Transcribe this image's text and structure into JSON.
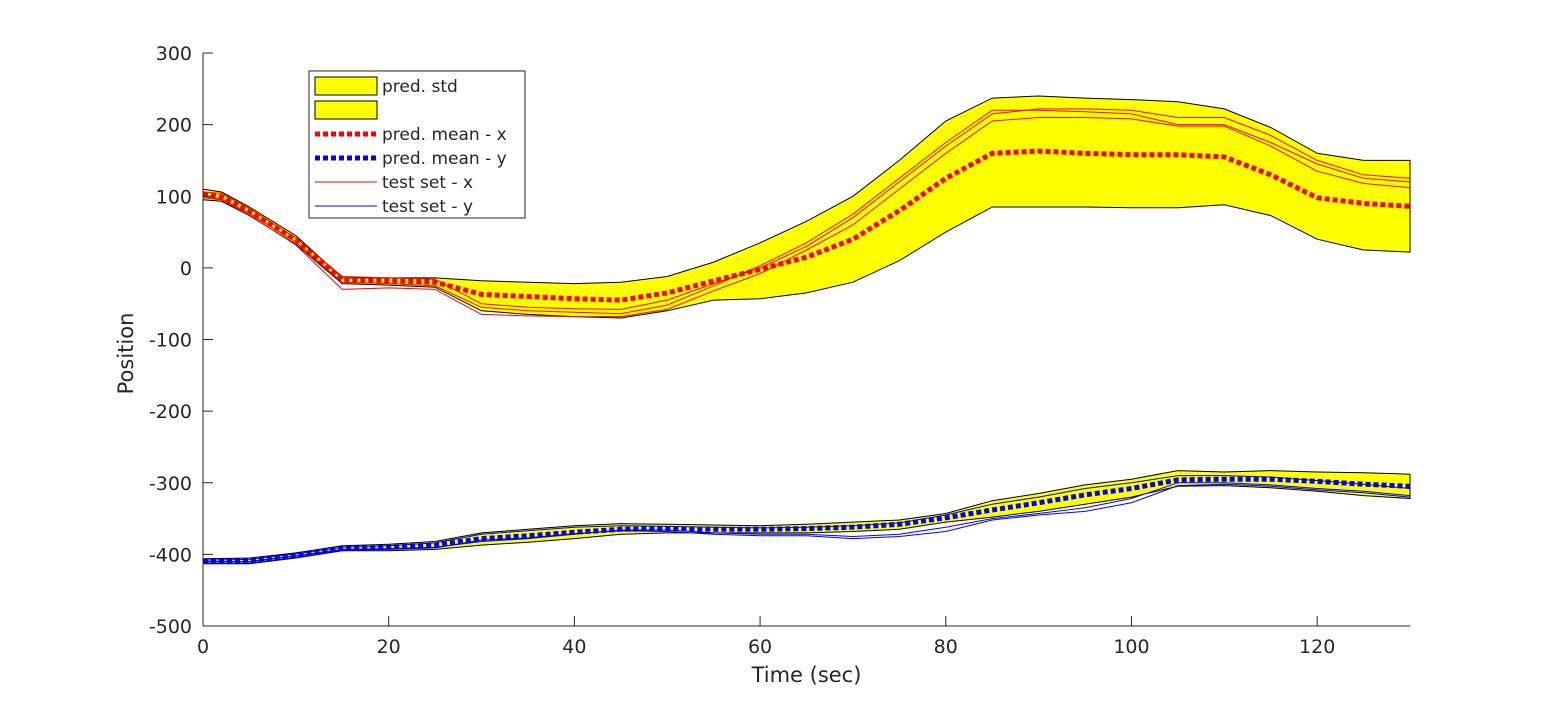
{
  "chart_data": {
    "type": "line",
    "title": "",
    "xlabel": "Time (sec)",
    "ylabel": "Position",
    "xlim": [
      0,
      130
    ],
    "ylim": [
      -500,
      300
    ],
    "xticks": [
      0,
      20,
      40,
      60,
      80,
      100,
      120
    ],
    "yticks": [
      -500,
      -400,
      -300,
      -200,
      -100,
      0,
      100,
      200,
      300
    ],
    "xtick_labels": [
      "0",
      "20",
      "40",
      "60",
      "80",
      "100",
      "120"
    ],
    "ytick_labels": [
      "-500",
      "-400",
      "-300",
      "-200",
      "-100",
      "0",
      "100",
      "200",
      "300"
    ],
    "grid": false,
    "legend": {
      "position": "top-left",
      "entries": [
        {
          "label": "pred. std",
          "kind": "patch"
        },
        {
          "label": "",
          "kind": "patch"
        },
        {
          "label": "pred. mean - x",
          "kind": "dotted"
        },
        {
          "label": "pred. mean - y",
          "kind": "dotted"
        },
        {
          "label": "test set - x",
          "kind": "line"
        },
        {
          "label": "test set - y",
          "kind": "line"
        }
      ]
    },
    "colors": {
      "band_fill": "#ffff00",
      "band_edge": "#000000",
      "mean_x": "#ff0000",
      "mean_y": "#0000ff",
      "test_x": "#ff0000",
      "test_y": "#0000ff",
      "axis": "#262626"
    },
    "bands": [
      {
        "name": "pred. std",
        "x": [
          0,
          2,
          5,
          10,
          15,
          20,
          25,
          30,
          35,
          40,
          45,
          50,
          55,
          60,
          65,
          70,
          75,
          80,
          85,
          90,
          95,
          100,
          105,
          110,
          115,
          120,
          125,
          130
        ],
        "upper": [
          110,
          106,
          85,
          45,
          -14,
          -14,
          -14,
          -18,
          -20,
          -22,
          -20,
          -12,
          8,
          35,
          65,
          100,
          150,
          205,
          237,
          240,
          237,
          235,
          232,
          222,
          196,
          160,
          150,
          150
        ],
        "lower": [
          95,
          93,
          73,
          33,
          -22,
          -24,
          -27,
          -60,
          -65,
          -68,
          -70,
          -60,
          -45,
          -43,
          -35,
          -20,
          10,
          50,
          85,
          85,
          85,
          84,
          84,
          88,
          73,
          40,
          25,
          22
        ]
      },
      {
        "name": "",
        "x": [
          0,
          5,
          10,
          15,
          20,
          25,
          30,
          35,
          40,
          45,
          50,
          55,
          60,
          65,
          70,
          75,
          80,
          85,
          90,
          95,
          100,
          105,
          110,
          115,
          120,
          125,
          130
        ],
        "upper": [
          -406,
          -405,
          -398,
          -388,
          -386,
          -382,
          -370,
          -365,
          -360,
          -357,
          -358,
          -359,
          -360,
          -358,
          -355,
          -352,
          -343,
          -325,
          -315,
          -303,
          -295,
          -283,
          -285,
          -283,
          -285,
          -286,
          -288
        ],
        "lower": [
          -413,
          -413,
          -405,
          -395,
          -395,
          -393,
          -387,
          -383,
          -378,
          -372,
          -370,
          -370,
          -370,
          -370,
          -368,
          -365,
          -355,
          -348,
          -340,
          -330,
          -320,
          -305,
          -304,
          -307,
          -312,
          -318,
          -322
        ]
      }
    ],
    "series": [
      {
        "name": "pred. mean - x",
        "style": "dotted",
        "x": [
          0,
          2,
          5,
          10,
          15,
          20,
          25,
          30,
          35,
          40,
          45,
          50,
          55,
          60,
          65,
          70,
          75,
          80,
          85,
          90,
          95,
          100,
          105,
          110,
          115,
          120,
          125,
          130
        ],
        "y": [
          103,
          99,
          79,
          39,
          -17,
          -18,
          -20,
          -37,
          -40,
          -43,
          -45,
          -35,
          -18,
          -2,
          15,
          40,
          80,
          125,
          160,
          163,
          160,
          158,
          158,
          155,
          130,
          98,
          90,
          86
        ]
      },
      {
        "name": "pred. mean - y",
        "style": "dotted",
        "x": [
          0,
          5,
          10,
          15,
          20,
          25,
          30,
          35,
          40,
          45,
          50,
          55,
          60,
          65,
          70,
          75,
          80,
          85,
          90,
          95,
          100,
          105,
          110,
          115,
          120,
          125,
          130
        ],
        "y": [
          -410,
          -409,
          -401,
          -392,
          -390,
          -387,
          -378,
          -374,
          -369,
          -365,
          -364,
          -365,
          -365,
          -364,
          -362,
          -358,
          -349,
          -338,
          -328,
          -317,
          -308,
          -296,
          -295,
          -295,
          -298,
          -302,
          -305
        ]
      },
      {
        "name": "test set - x",
        "style": "solid",
        "x": [
          0,
          2,
          5,
          10,
          15,
          20,
          25,
          30,
          35,
          40,
          45,
          50,
          55,
          60,
          65,
          70,
          75,
          80,
          85,
          90,
          95,
          100,
          105,
          110,
          115,
          120,
          125,
          130
        ],
        "y": [
          106,
          104,
          83,
          42,
          -12,
          -14,
          -16,
          -50,
          -55,
          -57,
          -58,
          -45,
          -22,
          0,
          30,
          70,
          120,
          170,
          215,
          222,
          222,
          220,
          210,
          210,
          185,
          150,
          130,
          125
        ]
      },
      {
        "name": "test set - x",
        "style": "solid",
        "x": [
          0,
          2,
          5,
          10,
          15,
          20,
          25,
          30,
          35,
          40,
          45,
          50,
          55,
          60,
          65,
          70,
          75,
          80,
          85,
          90,
          95,
          100,
          105,
          110,
          115,
          120,
          125,
          130
        ],
        "y": [
          100,
          96,
          76,
          36,
          -20,
          -22,
          -25,
          -55,
          -60,
          -62,
          -64,
          -52,
          -25,
          3,
          35,
          75,
          125,
          175,
          220,
          220,
          218,
          215,
          200,
          200,
          175,
          145,
          125,
          120
        ]
      },
      {
        "name": "test set - x",
        "style": "solid",
        "x": [
          0,
          2,
          5,
          10,
          15,
          20,
          25,
          30,
          35,
          40,
          45,
          50,
          55,
          60,
          65,
          70,
          75,
          80,
          85,
          90,
          95,
          100,
          105,
          110,
          115,
          120,
          125,
          130
        ],
        "y": [
          98,
          95,
          74,
          32,
          -30,
          -28,
          -30,
          -65,
          -67,
          -68,
          -68,
          -58,
          -32,
          -8,
          25,
          60,
          110,
          160,
          205,
          210,
          210,
          208,
          198,
          198,
          170,
          135,
          118,
          112
        ]
      },
      {
        "name": "test set - y",
        "style": "solid",
        "x": [
          0,
          5,
          10,
          15,
          20,
          25,
          30,
          35,
          40,
          45,
          50,
          55,
          60,
          65,
          70,
          75,
          80,
          85,
          90,
          95,
          100,
          105,
          110,
          115,
          120,
          125,
          130
        ],
        "y": [
          -408,
          -407,
          -399,
          -390,
          -388,
          -384,
          -372,
          -367,
          -362,
          -360,
          -361,
          -362,
          -363,
          -362,
          -360,
          -356,
          -345,
          -330,
          -320,
          -308,
          -300,
          -290,
          -290,
          -292,
          -297,
          -302,
          -308
        ]
      },
      {
        "name": "test set - y",
        "style": "solid",
        "x": [
          0,
          5,
          10,
          15,
          20,
          25,
          30,
          35,
          40,
          45,
          50,
          55,
          60,
          65,
          70,
          75,
          80,
          85,
          90,
          95,
          100,
          105,
          110,
          115,
          120,
          125,
          130
        ],
        "y": [
          -410,
          -410,
          -402,
          -393,
          -392,
          -390,
          -382,
          -378,
          -372,
          -366,
          -366,
          -370,
          -372,
          -372,
          -375,
          -372,
          -362,
          -350,
          -343,
          -335,
          -322,
          -300,
          -300,
          -303,
          -308,
          -312,
          -318
        ]
      },
      {
        "name": "test set - y",
        "style": "solid",
        "x": [
          0,
          5,
          10,
          15,
          20,
          25,
          30,
          35,
          40,
          45,
          50,
          55,
          60,
          65,
          70,
          75,
          80,
          85,
          90,
          95,
          100,
          105,
          110,
          115,
          120,
          125,
          130
        ],
        "y": [
          -412,
          -412,
          -404,
          -394,
          -393,
          -391,
          -380,
          -377,
          -371,
          -367,
          -368,
          -372,
          -374,
          -374,
          -378,
          -375,
          -368,
          -352,
          -345,
          -340,
          -328,
          -304,
          -302,
          -305,
          -310,
          -314,
          -320
        ]
      }
    ]
  }
}
